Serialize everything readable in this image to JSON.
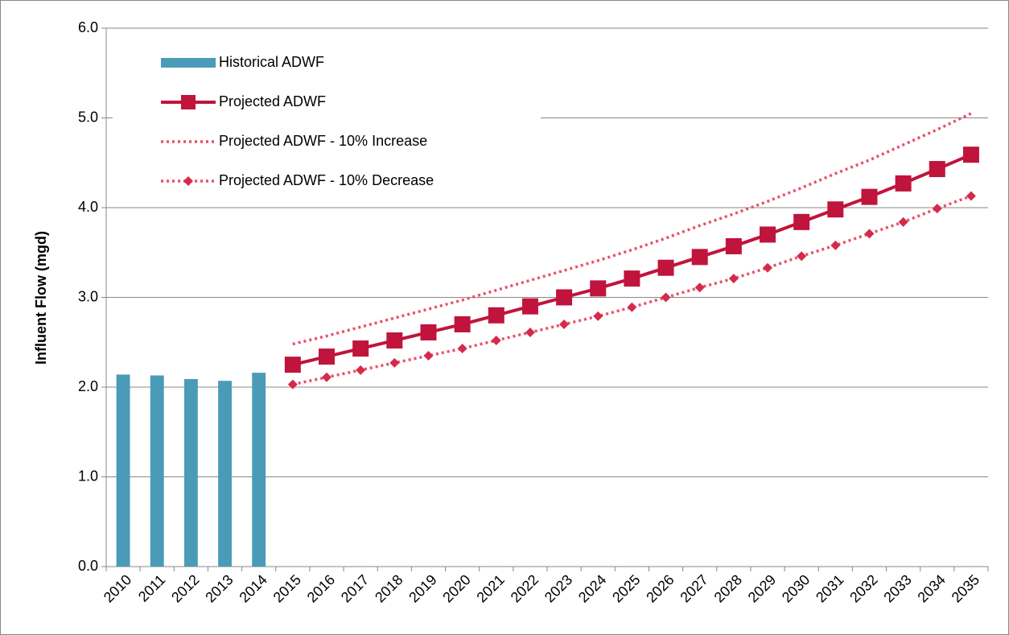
{
  "chart_data": {
    "type": "bar",
    "y_label": "Influent Flow (mgd)",
    "categories": [
      "2010",
      "2011",
      "2012",
      "2013",
      "2014",
      "2015",
      "2016",
      "2017",
      "2018",
      "2019",
      "2020",
      "2021",
      "2022",
      "2023",
      "2024",
      "2025",
      "2026",
      "2027",
      "2028",
      "2029",
      "2030",
      "2031",
      "2032",
      "2033",
      "2034",
      "2035"
    ],
    "ylim": [
      0,
      6
    ],
    "yticks": [
      {
        "value": 0,
        "label": "0.0"
      },
      {
        "value": 1,
        "label": "1.0"
      },
      {
        "value": 2,
        "label": "2.0"
      },
      {
        "value": 3,
        "label": "3.0"
      },
      {
        "value": 4,
        "label": "4.0"
      },
      {
        "value": 5,
        "label": "5.0"
      },
      {
        "value": 6,
        "label": "6.0"
      }
    ],
    "grid": true,
    "legend": "upper left",
    "series": [
      {
        "name": "Historical ADWF",
        "type": "bar",
        "color": "#4a9bb7",
        "values": [
          2.14,
          2.13,
          2.09,
          2.07,
          2.16,
          null,
          null,
          null,
          null,
          null,
          null,
          null,
          null,
          null,
          null,
          null,
          null,
          null,
          null,
          null,
          null,
          null,
          null,
          null,
          null,
          null
        ]
      },
      {
        "name": "Projected ADWF",
        "type": "line",
        "color": "#c0143c",
        "dash": "solid",
        "marker": "square",
        "values": [
          null,
          null,
          null,
          null,
          null,
          2.25,
          2.34,
          2.43,
          2.52,
          2.61,
          2.7,
          2.8,
          2.9,
          3.0,
          3.1,
          3.21,
          3.33,
          3.45,
          3.57,
          3.7,
          3.84,
          3.98,
          4.12,
          4.27,
          4.43,
          4.59
        ]
      },
      {
        "name": "Projected ADWF - 10% Increase",
        "type": "line",
        "color": "#e8506a",
        "dash": "dotted",
        "marker": "none",
        "values": [
          null,
          null,
          null,
          null,
          null,
          2.48,
          2.57,
          2.67,
          2.77,
          2.87,
          2.97,
          3.08,
          3.19,
          3.3,
          3.41,
          3.53,
          3.66,
          3.8,
          3.93,
          4.07,
          4.22,
          4.38,
          4.53,
          4.7,
          4.87,
          5.05
        ]
      },
      {
        "name": "Projected ADWF - 10% Decrease",
        "type": "line",
        "color": "#e8506a",
        "dash": "dotted",
        "marker": "diamond",
        "marker_color": "#d42a4c",
        "values": [
          null,
          null,
          null,
          null,
          null,
          2.03,
          2.11,
          2.19,
          2.27,
          2.35,
          2.43,
          2.52,
          2.61,
          2.7,
          2.79,
          2.89,
          3.0,
          3.11,
          3.21,
          3.33,
          3.46,
          3.58,
          3.71,
          3.84,
          3.99,
          4.13
        ]
      }
    ]
  }
}
